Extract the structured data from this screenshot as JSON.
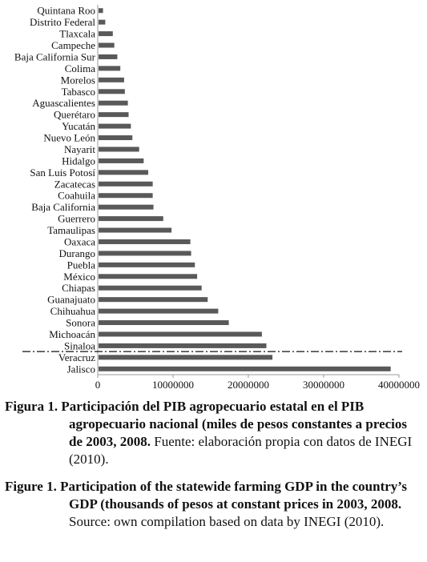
{
  "chart_data": {
    "type": "bar",
    "orientation": "horizontal",
    "categories": [
      "Quintana Roo",
      "Distrito Federal",
      "Tlaxcala",
      "Campeche",
      "Baja California Sur",
      "Colima",
      "Morelos",
      "Tabasco",
      "Aguascalientes",
      "Querétaro",
      "Yucatán",
      "Nuevo León",
      "Nayarit",
      "Hidalgo",
      "San Luis Potosí",
      "Zacatecas",
      "Coahuila",
      "Baja California",
      "Guerrero",
      "Tamaulipas",
      "Oaxaca",
      "Durango",
      "Puebla",
      "México",
      "Chiapas",
      "Guanajuato",
      "Chihuahua",
      "Sonora",
      "Michoacán",
      "Sinaloa",
      "Veracruz",
      "Jalisco"
    ],
    "values": [
      700000,
      1000000,
      2000000,
      2200000,
      2600000,
      3000000,
      3500000,
      3600000,
      4000000,
      4100000,
      4400000,
      4600000,
      5500000,
      6100000,
      6700000,
      7300000,
      7300000,
      7400000,
      8700000,
      9800000,
      12300000,
      12400000,
      12900000,
      13200000,
      13800000,
      14600000,
      16000000,
      17400000,
      21800000,
      22400000,
      23200000,
      38900000
    ],
    "xlim": [
      0,
      40000000
    ],
    "xticks": [
      "0",
      "10000000",
      "20000000",
      "30000000",
      "40000000"
    ],
    "bar_color": "#595959",
    "reference_line": {
      "style": "dash-dot",
      "between": [
        "Sinaloa",
        "Veracruz"
      ]
    }
  },
  "caption_es": {
    "label": "Figura 1.",
    "bold": "Participación del PIB agropecuario estatal en el PIB agropecuario nacional (miles de pesos constantes a precios de 2003, 2008.",
    "normal": " Fuente: elaboración propia con datos de INEGI (2010)."
  },
  "caption_en": {
    "label": "Figure 1.",
    "bold": "Participation of the statewide farming GDP in the country’s GDP (thousands of pesos at constant prices in 2003, 2008.",
    "normal": " Source: own compilation based on data by INEGI (2010)."
  }
}
